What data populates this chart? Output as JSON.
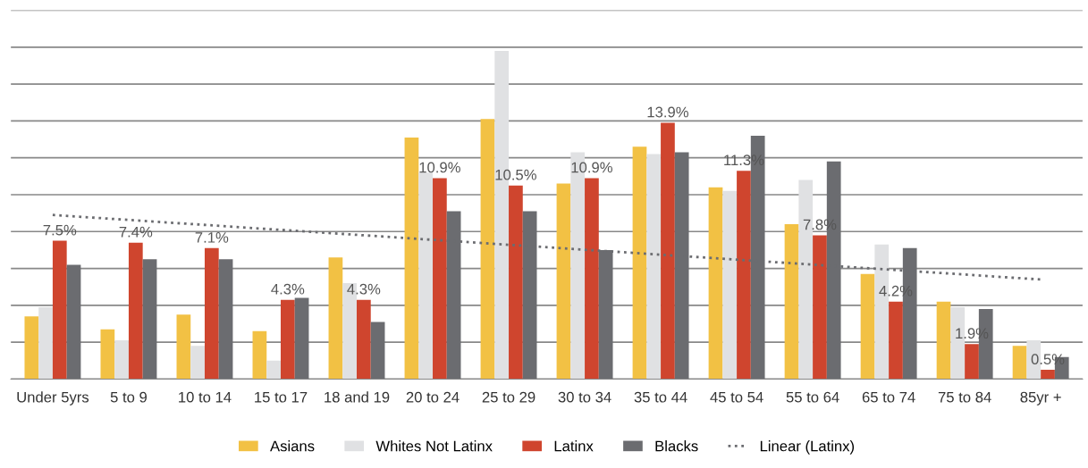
{
  "chart_data": {
    "type": "bar",
    "categories": [
      "Under 5yrs",
      "5 to 9",
      "10 to 14",
      "15 to 17",
      "18 and 19",
      "20 to 24",
      "25 to 29",
      "30 to 34",
      "35 to 44",
      "45 to 54",
      "55 to 64",
      "65 to 74",
      "75 to 84",
      "85yr +"
    ],
    "series": [
      {
        "name": "Asians",
        "color": "#f2c144",
        "values": [
          3.4,
          2.7,
          3.5,
          2.6,
          6.6,
          13.1,
          14.1,
          10.6,
          12.6,
          10.4,
          8.4,
          5.7,
          4.2,
          1.8
        ]
      },
      {
        "name": "Whites Not Latinx",
        "color": "#e0e1e3",
        "values": [
          3.9,
          2.1,
          1.8,
          1.0,
          5.2,
          11.2,
          17.8,
          12.3,
          12.2,
          10.2,
          10.8,
          7.3,
          3.9,
          2.1
        ]
      },
      {
        "name": "Latinx",
        "color": "#cf452e",
        "values": [
          7.5,
          7.4,
          7.1,
          4.3,
          4.3,
          10.9,
          10.5,
          10.9,
          13.9,
          11.3,
          7.8,
          4.2,
          1.9,
          0.5
        ],
        "value_labels": [
          "7.5%",
          "7.4%",
          "7.1%",
          "4.3%",
          "4.3%",
          "10.9%",
          "10.5%",
          "10.9%",
          "13.9%",
          "11.3%",
          "7.8%",
          "4.2%",
          "1.9%",
          "0.5%"
        ]
      },
      {
        "name": "Blacks",
        "color": "#6b6c70",
        "values": [
          6.2,
          6.5,
          6.5,
          4.4,
          3.1,
          9.1,
          9.1,
          7.0,
          12.3,
          13.2,
          11.8,
          7.1,
          3.8,
          1.2
        ]
      },
      {
        "name": "Linear (Latinx)",
        "type": "line",
        "color": "#6b6c70",
        "line_style": "dotted",
        "x": [
          "Under 5yrs",
          "85yr +"
        ],
        "values": [
          8.9,
          5.4
        ]
      }
    ],
    "ylim": [
      0,
      20
    ],
    "yticks": [
      {
        "value": 0,
        "label": null
      },
      {
        "value": 2,
        "label": null
      },
      {
        "value": 4,
        "label": null
      },
      {
        "value": 6,
        "label": null
      },
      {
        "value": 8,
        "label": null
      },
      {
        "value": 10,
        "label": null
      },
      {
        "value": 12,
        "label": null
      },
      {
        "value": 14,
        "label": null
      },
      {
        "value": 16,
        "label": null
      },
      {
        "value": 18,
        "label": null
      },
      {
        "value": 20,
        "label": null
      }
    ],
    "tick_labels": "x",
    "grid": "y",
    "legend": "bottom"
  }
}
